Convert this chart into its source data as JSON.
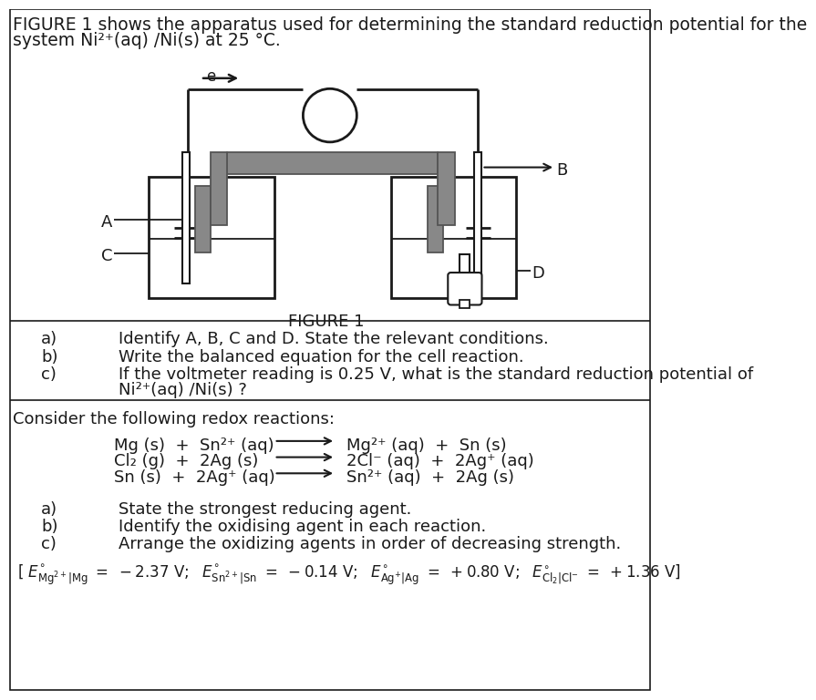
{
  "title_line1": "FIGURE 1 shows the apparatus used for determining the standard reduction potential for the",
  "title_line2": "system Ni²⁺(aq) /Ni(s) at 25 °C.",
  "fig_label": "FIGURE 1",
  "qa_text1": "Identify A, B, C and D. State the relevant conditions.",
  "qb_text1": "Write the balanced equation for the cell reaction.",
  "qc_text1": "If the voltmeter reading is 0.25 V, what is the standard reduction potential of",
  "qc_text2": "Ni²⁺(aq) /Ni(s) ?",
  "section2_title": "Consider the following redox reactions:",
  "rxn1_left": "Mg (s)  +  Sn²⁺ (aq)",
  "rxn1_right": "Mg²⁺ (aq)  +  Sn (s)",
  "rxn2_left": "Cl₂ (g)  +  2Ag (s)",
  "rxn2_right": "2Cl⁻ (aq)  +  2Ag⁺ (aq)",
  "rxn3_left": "Sn (s)  +  2Ag⁺ (aq)",
  "rxn3_right": "Sn²⁺ (aq)  +  2Ag (s)",
  "qa2_text": "State the strongest reducing agent.",
  "qb2_text": "Identify the oxidising agent in each reaction.",
  "qc2_text": "Arrange the oxidizing agents in order of decreasing strength.",
  "bg_color": "#ffffff",
  "text_color": "#1a1a1a",
  "line_color": "#1a1a1a",
  "gray_color": "#888888",
  "dark_gray": "#555555"
}
